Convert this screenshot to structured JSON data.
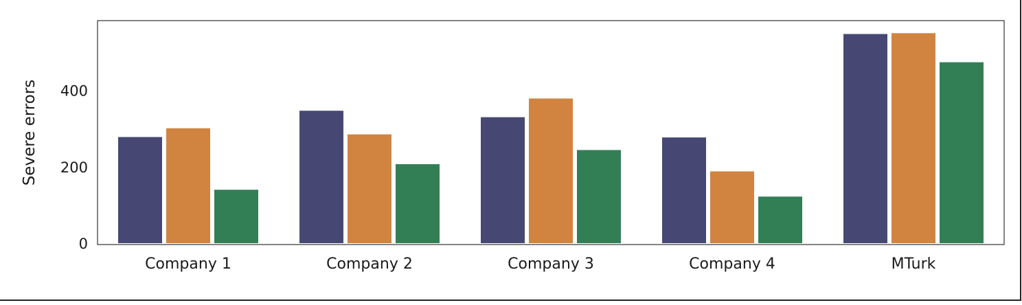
{
  "chart_data": {
    "type": "bar",
    "title": "",
    "xlabel": "",
    "ylabel": "Severe errors",
    "categories": [
      "Company 1",
      "Company 2",
      "Company 3",
      "Company 4",
      "MTurk"
    ],
    "series": [
      {
        "color": "#464873",
        "values": [
          278,
          347,
          330,
          277,
          548
        ]
      },
      {
        "color": "#d08440",
        "values": [
          301,
          285,
          379,
          188,
          550
        ]
      },
      {
        "color": "#327f56",
        "values": [
          140,
          207,
          244,
          122,
          474
        ]
      }
    ],
    "yticks": [
      0,
      200,
      400
    ],
    "ylim": [
      0,
      583
    ],
    "grid": false,
    "legend": "none"
  }
}
